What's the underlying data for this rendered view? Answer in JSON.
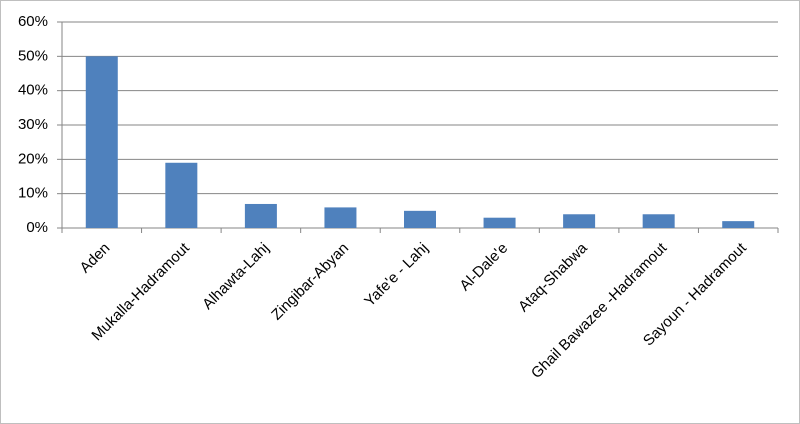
{
  "chart_data": {
    "type": "bar",
    "categories": [
      "Aden",
      "Mukalla-Hadramout",
      "Alhawta-Lahj",
      "Zingibar-Abyan",
      "Yafe'e - Lahj",
      "Al-Dale'e",
      "Ataq-Shabwa",
      "Ghail Bawazee -Hadramout",
      "Sayoun - Hadramout"
    ],
    "values": [
      50,
      19,
      7,
      6,
      5,
      3,
      4,
      4,
      2
    ],
    "color": "#4f81bd",
    "ylim": [
      0,
      60
    ],
    "yticks": [
      {
        "value": 0,
        "label": "0%"
      },
      {
        "value": 10,
        "label": "10%"
      },
      {
        "value": 20,
        "label": "20%"
      },
      {
        "value": 30,
        "label": "30%"
      },
      {
        "value": 40,
        "label": "40%"
      },
      {
        "value": 50,
        "label": "50%"
      },
      {
        "value": 60,
        "label": "60%"
      }
    ],
    "grid": true
  }
}
